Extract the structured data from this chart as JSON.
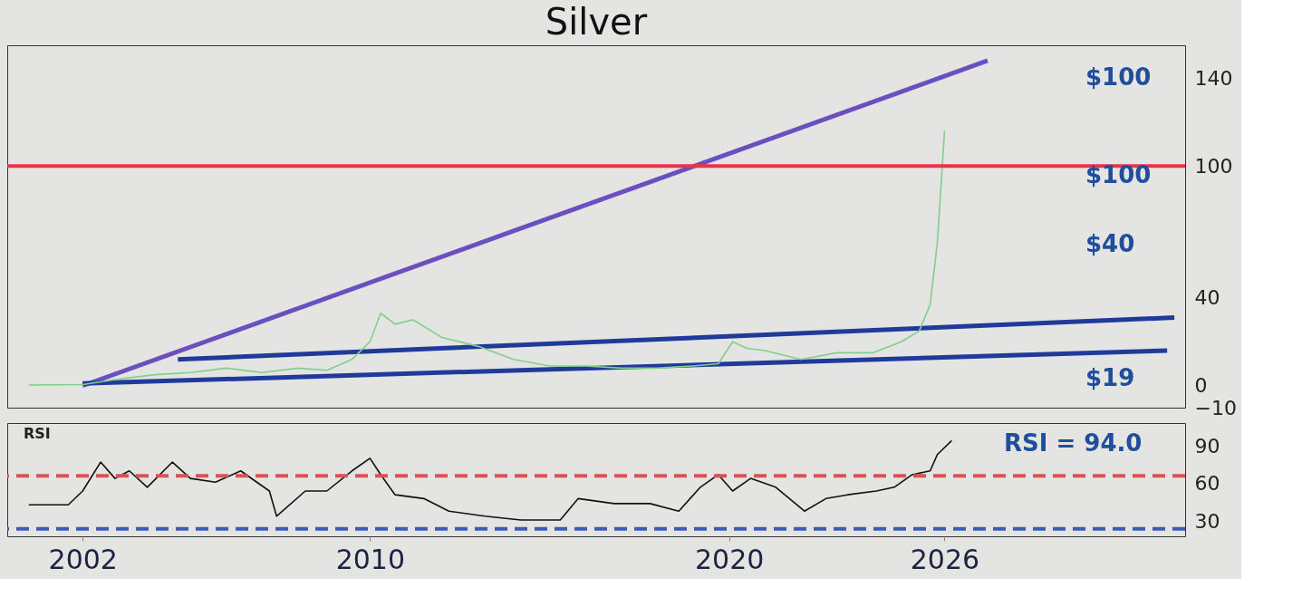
{
  "chart_data": [
    {
      "type": "line",
      "title": "Silver",
      "xlim": [
        1999.9,
        2032.7
      ],
      "xticks": [
        2002,
        2010,
        2020,
        2026
      ],
      "ylim": [
        -10,
        155
      ],
      "yticks": [
        -10,
        0,
        40,
        100,
        140
      ],
      "tick_labels": "y",
      "grid": false,
      "marker": "none",
      "line_style": "solid",
      "series": [
        {
          "color": "#6a4fc0",
          "x": [
            2002,
            2027.2
          ],
          "values": [
            0,
            148
          ]
        },
        {
          "color": "#1f3a9a",
          "x": [
            2004.65,
            2032.4
          ],
          "values": [
            12,
            31
          ]
        },
        {
          "color": "#1f3a9a",
          "x": [
            2002,
            2032.2
          ],
          "values": [
            1,
            16
          ]
        },
        {
          "color": "#7fd08a",
          "x": [
            2000.5,
            2002,
            2003,
            2004,
            2005,
            2006,
            2007,
            2008,
            2008.8,
            2009.5,
            2010,
            2010.3,
            2010.7,
            2011.2,
            2012,
            2013,
            2014,
            2015,
            2016,
            2017,
            2018,
            2019,
            2019.7,
            2020.1,
            2020.5,
            2021,
            2022,
            2023,
            2024,
            2024.8,
            2025.3,
            2025.6,
            2025.8,
            2026
          ],
          "values": [
            0.3,
            0.5,
            3,
            5,
            6,
            8,
            6,
            8,
            7,
            12,
            20,
            33,
            28,
            30,
            22,
            18,
            12,
            9,
            9,
            8,
            8,
            9,
            10,
            20,
            17,
            16,
            12,
            15,
            15,
            20,
            25,
            37,
            65,
            116
          ]
        }
      ],
      "ref_lines": [
        {
          "axis": "y",
          "value": 100,
          "color": "#e8334a"
        }
      ],
      "annotations": [
        "$100",
        "$100",
        "$40",
        "$19"
      ]
    },
    {
      "type": "line",
      "title": "RSI",
      "xlim": [
        1999.9,
        2032.7
      ],
      "xticks": [
        2002,
        2010,
        2020,
        2026
      ],
      "ylim": [
        18,
        108
      ],
      "yticks": [
        30,
        60,
        90
      ],
      "grid": false,
      "marker": "none",
      "line_style": "solid",
      "series": [
        {
          "color": "#111111",
          "x": [
            2000.5,
            2001.6,
            2002,
            2002.5,
            2002.9,
            2003.3,
            2003.8,
            2004.5,
            2005,
            2005.7,
            2006.4,
            2007.2,
            2007.4,
            2008.2,
            2008.8,
            2009.5,
            2010,
            2010.3,
            2010.7,
            2011.5,
            2012.2,
            2013.2,
            2014.2,
            2015.3,
            2015.8,
            2016.8,
            2017.8,
            2018.6,
            2019.2,
            2019.7,
            2020.1,
            2020.6,
            2021.3,
            2022.1,
            2022.7,
            2023.3,
            2024.1,
            2024.6,
            2025.1,
            2025.6,
            2025.8,
            2026.2
          ],
          "values": [
            43,
            43,
            54,
            77,
            64,
            70,
            57,
            77,
            64,
            61,
            70,
            54,
            34,
            54,
            54,
            70,
            80,
            67,
            51,
            48,
            38,
            34,
            31,
            31,
            48,
            44,
            44,
            38,
            57,
            67,
            54,
            64,
            57,
            38,
            48,
            51,
            54,
            57,
            67,
            70,
            83,
            94
          ]
        }
      ],
      "ref_lines": [
        {
          "axis": "y",
          "value": 66,
          "color": "#d9534f",
          "line_style": "dashed"
        },
        {
          "axis": "y",
          "value": 24,
          "color": "#3b5bb5",
          "line_style": "dashed"
        }
      ],
      "annotations": [
        "RSI = 94.0"
      ]
    }
  ]
}
